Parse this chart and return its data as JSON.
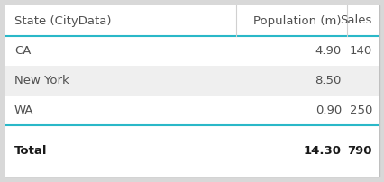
{
  "headers": [
    "State (CityData)",
    "Population (m)",
    "Sales"
  ],
  "rows": [
    {
      "state": "CA",
      "population": "4.90",
      "sales": "140",
      "bg": "#ffffff"
    },
    {
      "state": "New York",
      "population": "8.50",
      "sales": "",
      "bg": "#efefef"
    },
    {
      "state": "WA",
      "population": "0.90",
      "sales": "250",
      "bg": "#ffffff"
    }
  ],
  "total": {
    "state": "Total",
    "population": "14.30",
    "sales": "790"
  },
  "header_bg": "#ffffff",
  "total_bg": "#ffffff",
  "accent_line_color": "#2ab8c8",
  "col_sep_color": "#d0d0d0",
  "text_color": "#505050",
  "total_text_color": "#1a1a1a",
  "outer_border_color": "#c0c0c0",
  "header_fontsize": 9.5,
  "row_fontsize": 9.5,
  "total_fontsize": 9.5
}
